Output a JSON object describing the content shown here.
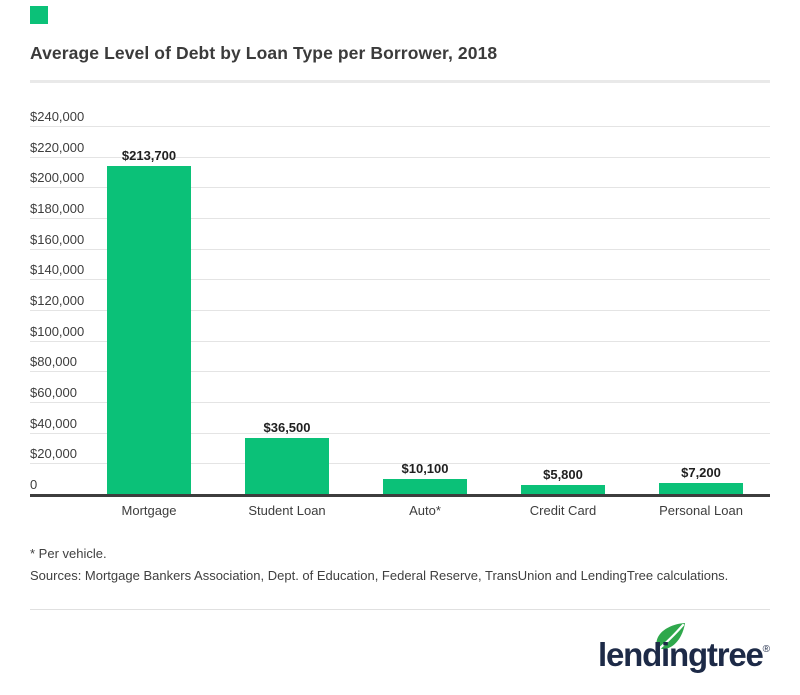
{
  "title": "Average Level of Debt by Loan Type per Borrower, 2018",
  "brand": {
    "accent_color": "#0bc178",
    "logo_text": "lendingtree",
    "registered_mark": "®",
    "leaf_color": "#2fa84c",
    "navy_color": "#1d2a47"
  },
  "chart_data": {
    "type": "bar",
    "title": "Average Level of Debt by Loan Type per Borrower, 2018",
    "categories": [
      "Mortgage",
      "Student Loan",
      "Auto*",
      "Credit Card",
      "Personal Loan"
    ],
    "values": [
      213700,
      36500,
      10100,
      5800,
      7200
    ],
    "value_labels": [
      "$213,700",
      "$36,500",
      "$10,100",
      "$5,800",
      "$7,200"
    ],
    "xlabel": "",
    "ylabel": "",
    "ylim": [
      0,
      240000
    ],
    "y_tick_step": 20000,
    "y_tick_labels": [
      "$240,000",
      "$220,000",
      "$200,000",
      "$180,000",
      "$160,000",
      "$140,000",
      "$120,000",
      "$100,000",
      "$80,000",
      "$60,000",
      "$40,000",
      "$20,000",
      "0"
    ],
    "bar_color": "#0bc178",
    "grid": "on",
    "gridline_color": "#e4e4e4",
    "axis_line_color": "#3d3d3d",
    "legend": "none"
  },
  "footnotes": {
    "line1": "* Per vehicle.",
    "line2": "Sources: Mortgage Bankers Association, Dept. of Education, Federal Reserve, TransUnion and LendingTree calculations."
  }
}
